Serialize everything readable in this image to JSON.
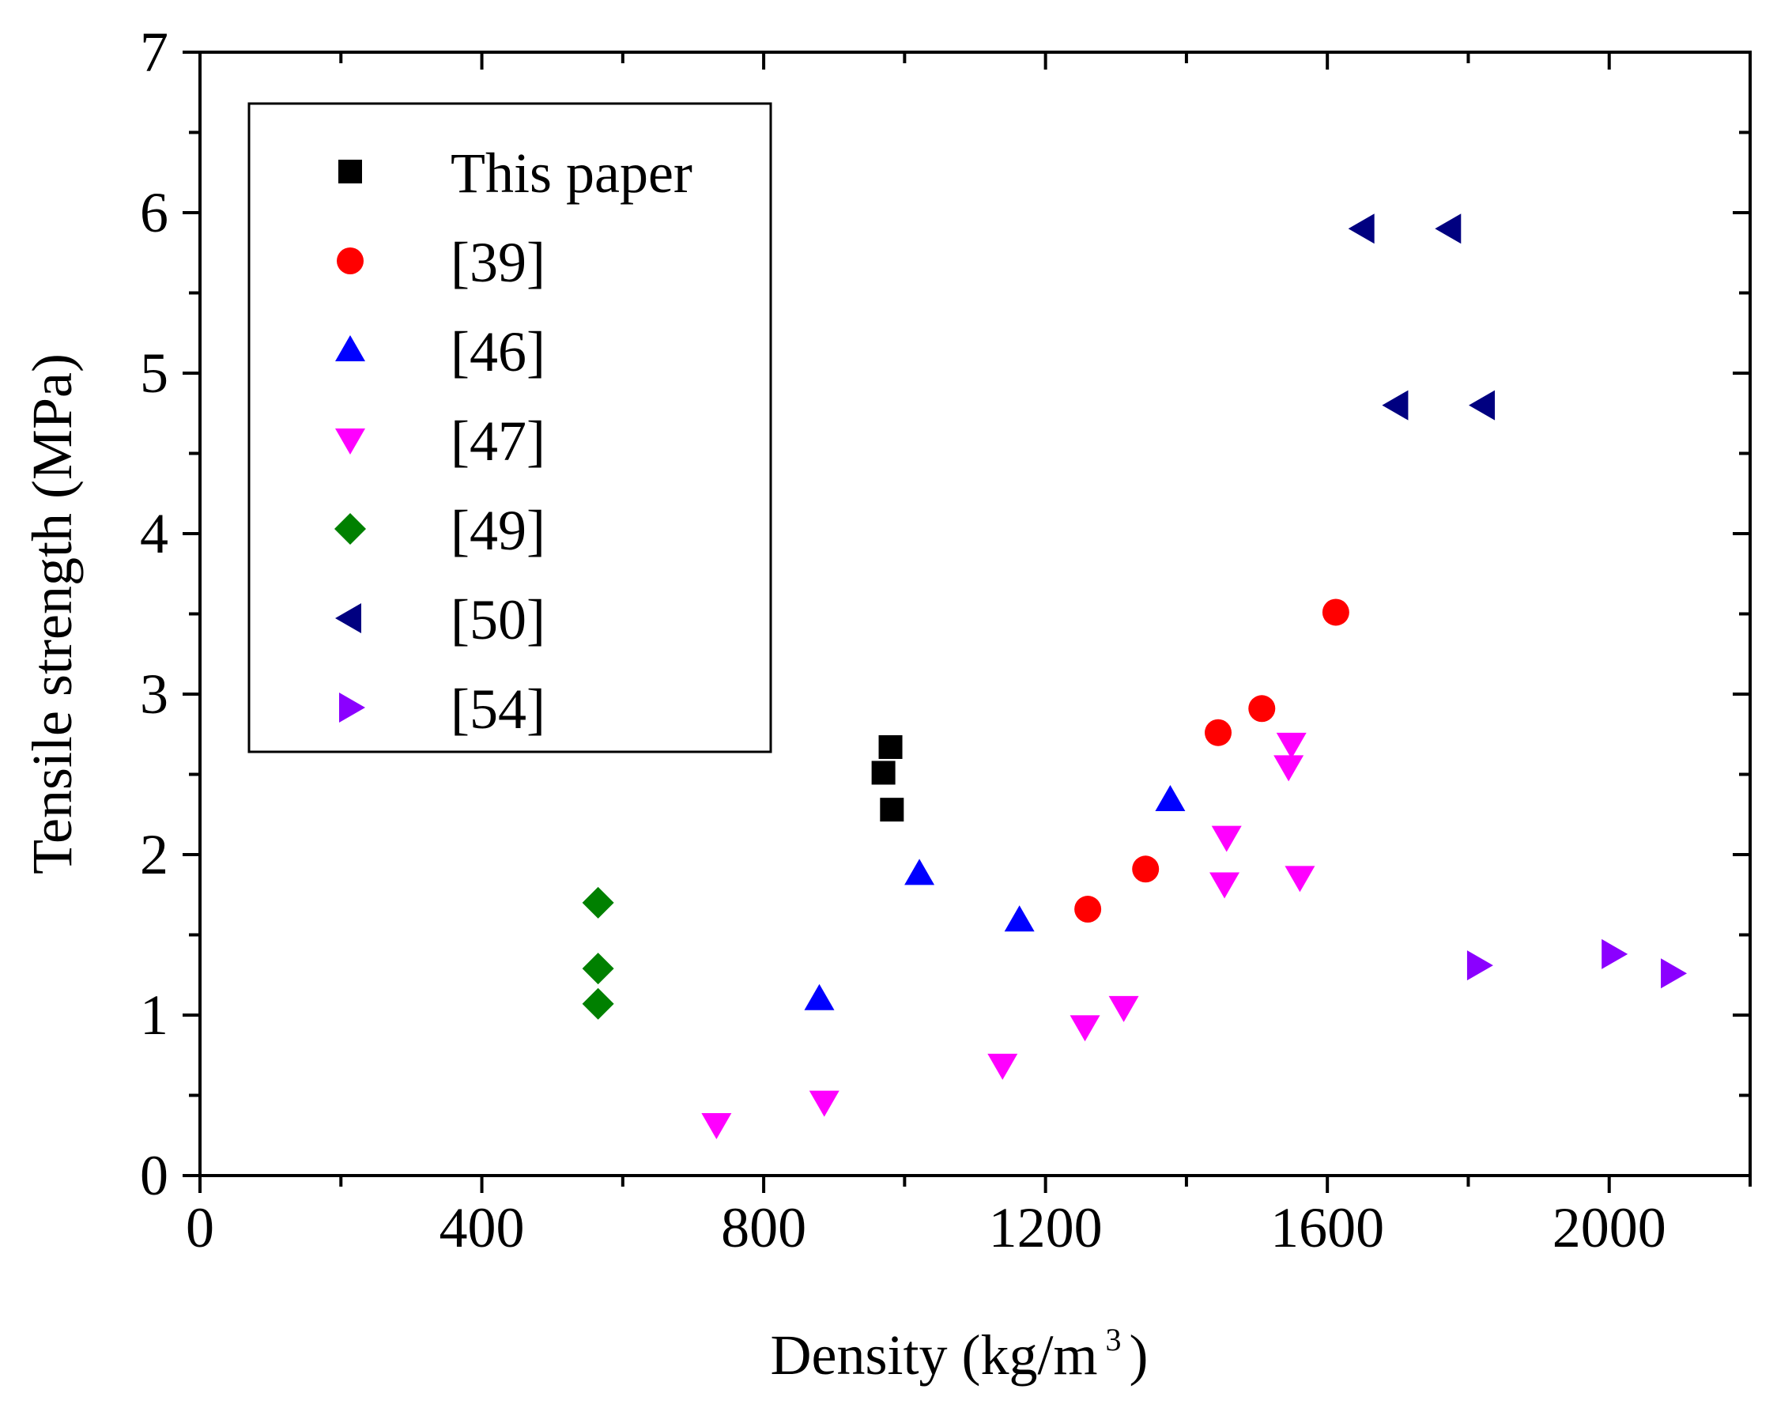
{
  "chart_data": {
    "type": "scatter",
    "xlabel_main": "Density (kg/m",
    "xlabel_sup": "3",
    "xlabel_close": ")",
    "ylabel": "Tensile strength (MPa)",
    "xlim": [
      0,
      2200
    ],
    "ylim": [
      0,
      7
    ],
    "x_ticks": [
      "0",
      "400",
      "800",
      "1200",
      "1600",
      "2000"
    ],
    "y_ticks": [
      "0",
      "1",
      "2",
      "3",
      "4",
      "5",
      "6",
      "7"
    ],
    "legend_position": "top-left",
    "series": [
      {
        "name": "This paper",
        "marker": "square",
        "color": "#000000",
        "points": [
          [
            970,
            2.51
          ],
          [
            980,
            2.67
          ],
          [
            982,
            2.28
          ]
        ]
      },
      {
        "name": "[39]",
        "marker": "circle",
        "color": "#ff0000",
        "points": [
          [
            1260,
            1.66
          ],
          [
            1342,
            1.91
          ],
          [
            1445,
            2.76
          ],
          [
            1507,
            2.91
          ],
          [
            1612,
            3.51
          ]
        ]
      },
      {
        "name": "[46]",
        "marker": "triangle-up",
        "color": "#0000ff",
        "points": [
          [
            879,
            1.1
          ],
          [
            1021,
            1.88
          ],
          [
            1163,
            1.59
          ],
          [
            1377,
            2.34
          ]
        ]
      },
      {
        "name": "[47]",
        "marker": "triangle-down",
        "color": "#ff00ff",
        "points": [
          [
            733,
            0.32
          ],
          [
            886,
            0.46
          ],
          [
            1139,
            0.69
          ],
          [
            1256,
            0.93
          ],
          [
            1311,
            1.05
          ],
          [
            1454,
            1.82
          ],
          [
            1457,
            2.11
          ],
          [
            1545,
            2.55
          ],
          [
            1549,
            2.69
          ],
          [
            1561,
            1.86
          ]
        ]
      },
      {
        "name": "[49]",
        "marker": "diamond",
        "color": "#008000",
        "points": [
          [
            565,
            1.7
          ],
          [
            565,
            1.29
          ],
          [
            565,
            1.07
          ]
        ]
      },
      {
        "name": "[50]",
        "marker": "triangle-left",
        "color": "#000080",
        "points": [
          [
            1651,
            5.9
          ],
          [
            1774,
            5.9
          ],
          [
            1699,
            4.8
          ],
          [
            1822,
            4.8
          ]
        ]
      },
      {
        "name": "[54]",
        "marker": "triangle-right",
        "color": "#8b00ff",
        "points": [
          [
            1814,
            1.31
          ],
          [
            2005,
            1.38
          ],
          [
            2089,
            1.26
          ]
        ]
      }
    ]
  }
}
